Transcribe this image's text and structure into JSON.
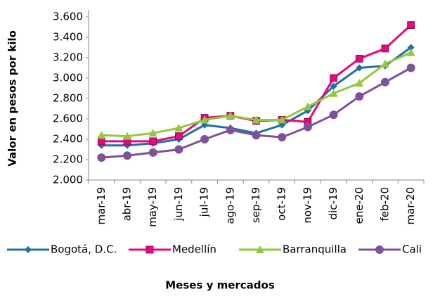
{
  "chart_data": {
    "type": "line",
    "y_label": "Valor en pesos por kilo",
    "x_label": "Meses  y mercados",
    "categories": [
      "mar-19",
      "abr-19",
      "may-19",
      "jun-19",
      "jul-19",
      "ago-19",
      "sep-19",
      "oct-19",
      "nov-19",
      "dic-19",
      "ene-20",
      "feb-20",
      "mar-20"
    ],
    "series": [
      {
        "name": "Bogotá, D.C.",
        "color": "#1f6fa8",
        "marker": "diamond",
        "values": [
          2340,
          2340,
          2360,
          2400,
          2540,
          2510,
          2460,
          2540,
          2680,
          2920,
          3100,
          3120,
          3300
        ]
      },
      {
        "name": "Medellín",
        "color": "#e5097f",
        "marker": "square",
        "values": [
          2380,
          2380,
          2380,
          2430,
          2610,
          2630,
          2580,
          2590,
          2570,
          3000,
          3190,
          3290,
          3520
        ]
      },
      {
        "name": "Barranquilla",
        "color": "#93c83e",
        "marker": "triangle",
        "values": [
          2440,
          2430,
          2460,
          2510,
          2590,
          2630,
          2590,
          2590,
          2720,
          2850,
          2950,
          3140,
          3250
        ]
      },
      {
        "name": "Cali",
        "color": "#80509a",
        "marker": "circle",
        "values": [
          2220,
          2240,
          2270,
          2300,
          2400,
          2490,
          2440,
          2420,
          2520,
          2640,
          2820,
          2960,
          3100
        ]
      }
    ],
    "ylim": [
      2000,
      3600
    ],
    "yticks": [
      {
        "value": 2000,
        "label": "2.000"
      },
      {
        "value": 2200,
        "label": "2.200"
      },
      {
        "value": 2400,
        "label": "2.400"
      },
      {
        "value": 2600,
        "label": "2.600"
      },
      {
        "value": 2800,
        "label": "2.800"
      },
      {
        "value": 3000,
        "label": "3.000"
      },
      {
        "value": 3200,
        "label": "3.200"
      },
      {
        "value": 3400,
        "label": "3.400"
      },
      {
        "value": 3600,
        "label": "3.600"
      }
    ],
    "grid": false,
    "legend": "bottom"
  }
}
